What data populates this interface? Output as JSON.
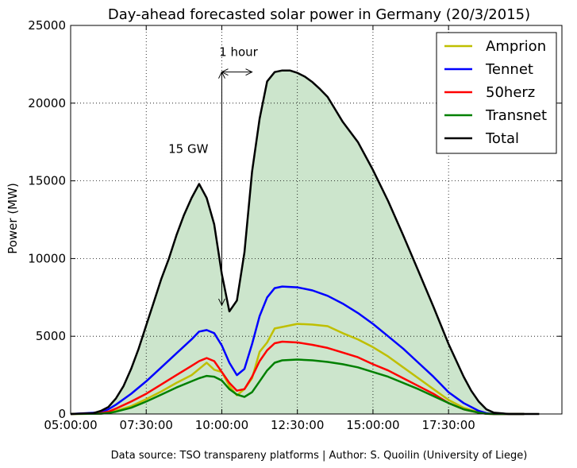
{
  "chart_data": {
    "type": "line",
    "title": "Day-ahead forecasted solar power in Germany (20/3/2015)",
    "ylabel": "Power (MW)",
    "xlabel": "",
    "footer": "Data source: TSO transpareny platforms | Author: S. Quoilin (University of Liege)",
    "x_unit": "hours",
    "xlim": [
      5,
      21.25
    ],
    "ylim": [
      0,
      25000
    ],
    "x_ticks": [
      {
        "value": 5.0,
        "label": "05:00:00"
      },
      {
        "value": 7.5,
        "label": "07:30:00"
      },
      {
        "value": 10.0,
        "label": "10:00:00"
      },
      {
        "value": 12.5,
        "label": "12:30:00"
      },
      {
        "value": 15.0,
        "label": "15:00:00"
      },
      {
        "value": 17.5,
        "label": "17:30:00"
      }
    ],
    "y_ticks": [
      {
        "value": 0,
        "label": "0"
      },
      {
        "value": 5000,
        "label": "5000"
      },
      {
        "value": 10000,
        "label": "10000"
      },
      {
        "value": 15000,
        "label": "15000"
      },
      {
        "value": 20000,
        "label": "20000"
      },
      {
        "value": 25000,
        "label": "25000"
      }
    ],
    "grid": true,
    "legend_position": "top-right",
    "fill_series": "Total",
    "fill_color": "#cce5cc",
    "series": [
      {
        "name": "Amprion",
        "color": "#bfbf00",
        "x": [
          5.0,
          6.0,
          6.25,
          6.5,
          7.0,
          7.5,
          8.0,
          8.5,
          9.0,
          9.25,
          9.5,
          9.75,
          10.0,
          10.25,
          10.5,
          10.75,
          11.0,
          11.25,
          11.5,
          11.75,
          12.0,
          12.5,
          13.0,
          13.5,
          14.0,
          14.5,
          15.0,
          15.5,
          16.0,
          16.5,
          17.0,
          17.5,
          18.0,
          18.5,
          18.75,
          19.0,
          19.5,
          20.0
        ],
        "y": [
          0,
          20,
          100,
          200,
          500,
          950,
          1450,
          2000,
          2500,
          2900,
          3300,
          2850,
          2700,
          1800,
          1200,
          1600,
          2300,
          4000,
          4600,
          5500,
          5600,
          5800,
          5750,
          5650,
          5200,
          4800,
          4300,
          3700,
          3000,
          2300,
          1600,
          900,
          400,
          100,
          20,
          0,
          0,
          0
        ]
      },
      {
        "name": "Tennet",
        "color": "#0000ff",
        "x": [
          5.0,
          6.0,
          6.25,
          6.5,
          7.0,
          7.5,
          8.0,
          8.5,
          9.0,
          9.25,
          9.5,
          9.75,
          10.0,
          10.25,
          10.5,
          10.75,
          11.0,
          11.25,
          11.5,
          11.75,
          12.0,
          12.5,
          13.0,
          13.5,
          14.0,
          14.5,
          15.0,
          15.5,
          16.0,
          16.5,
          17.0,
          17.5,
          18.0,
          18.5,
          18.75,
          19.0,
          19.5,
          20.0
        ],
        "y": [
          0,
          100,
          300,
          600,
          1300,
          2100,
          3000,
          3900,
          4800,
          5300,
          5400,
          5200,
          4400,
          3300,
          2500,
          2900,
          4500,
          6300,
          7500,
          8100,
          8200,
          8150,
          7950,
          7600,
          7100,
          6500,
          5800,
          5000,
          4200,
          3300,
          2400,
          1400,
          700,
          200,
          50,
          0,
          0,
          0
        ]
      },
      {
        "name": "50herz",
        "color": "#ff0000",
        "x": [
          5.0,
          6.0,
          6.25,
          6.5,
          7.0,
          7.5,
          8.0,
          8.5,
          9.0,
          9.25,
          9.5,
          9.75,
          10.0,
          10.25,
          10.5,
          10.75,
          11.0,
          11.25,
          11.5,
          11.75,
          12.0,
          12.5,
          13.0,
          13.5,
          14.0,
          14.5,
          15.0,
          15.5,
          16.0,
          16.5,
          17.0,
          17.5,
          18.0,
          18.5,
          18.75,
          19.0,
          19.5,
          20.0
        ],
        "y": [
          0,
          50,
          150,
          350,
          800,
          1300,
          1900,
          2500,
          3100,
          3400,
          3600,
          3400,
          2700,
          2000,
          1500,
          1600,
          2400,
          3400,
          4100,
          4550,
          4650,
          4600,
          4450,
          4250,
          3950,
          3650,
          3200,
          2800,
          2300,
          1800,
          1300,
          700,
          300,
          80,
          10,
          0,
          0,
          0
        ]
      },
      {
        "name": "Transnet",
        "color": "#008000",
        "x": [
          5.0,
          6.0,
          6.25,
          6.5,
          7.0,
          7.5,
          8.0,
          8.5,
          9.0,
          9.25,
          9.5,
          9.75,
          10.0,
          10.25,
          10.5,
          10.75,
          11.0,
          11.25,
          11.5,
          11.75,
          12.0,
          12.5,
          13.0,
          13.5,
          14.0,
          14.5,
          15.0,
          15.5,
          16.0,
          16.5,
          17.0,
          17.5,
          18.0,
          18.5,
          18.75,
          19.0,
          19.5,
          20.0
        ],
        "y": [
          0,
          20,
          60,
          150,
          400,
          800,
          1250,
          1700,
          2100,
          2300,
          2450,
          2400,
          2150,
          1600,
          1250,
          1100,
          1400,
          2100,
          2800,
          3300,
          3450,
          3500,
          3450,
          3350,
          3200,
          3000,
          2700,
          2400,
          2000,
          1600,
          1150,
          700,
          300,
          80,
          10,
          0,
          0,
          0
        ]
      },
      {
        "name": "Total",
        "color": "#000000",
        "x": [
          5.0,
          5.75,
          6.0,
          6.25,
          6.5,
          6.75,
          7.0,
          7.25,
          7.5,
          7.75,
          8.0,
          8.25,
          8.5,
          8.75,
          9.0,
          9.25,
          9.5,
          9.75,
          10.0,
          10.25,
          10.5,
          10.75,
          11.0,
          11.25,
          11.5,
          11.75,
          12.0,
          12.25,
          12.5,
          12.75,
          13.0,
          13.25,
          13.5,
          13.75,
          14.0,
          14.5,
          15.0,
          15.5,
          16.0,
          16.5,
          17.0,
          17.5,
          18.0,
          18.25,
          18.5,
          18.75,
          19.0,
          19.5,
          20.0,
          20.5
        ],
        "y": [
          0,
          50,
          200,
          450,
          1000,
          1800,
          2900,
          4200,
          5700,
          7200,
          8700,
          10000,
          11500,
          12800,
          13900,
          14800,
          13900,
          12200,
          9000,
          6600,
          7300,
          10400,
          15600,
          19000,
          21400,
          22000,
          22100,
          22100,
          21950,
          21700,
          21350,
          20900,
          20400,
          19600,
          18800,
          17500,
          15700,
          13700,
          11500,
          9200,
          6900,
          4500,
          2400,
          1500,
          800,
          300,
          80,
          0,
          0,
          0
        ]
      }
    ],
    "annotations": [
      {
        "text": "1 hour",
        "arrow": "horizontal-double",
        "x_start": 10.0,
        "x_end": 11.0,
        "y": 22000
      },
      {
        "text": "15 GW",
        "arrow": "vertical-double",
        "x": 10.0,
        "y_start": 7000,
        "y_end": 22000
      }
    ]
  }
}
